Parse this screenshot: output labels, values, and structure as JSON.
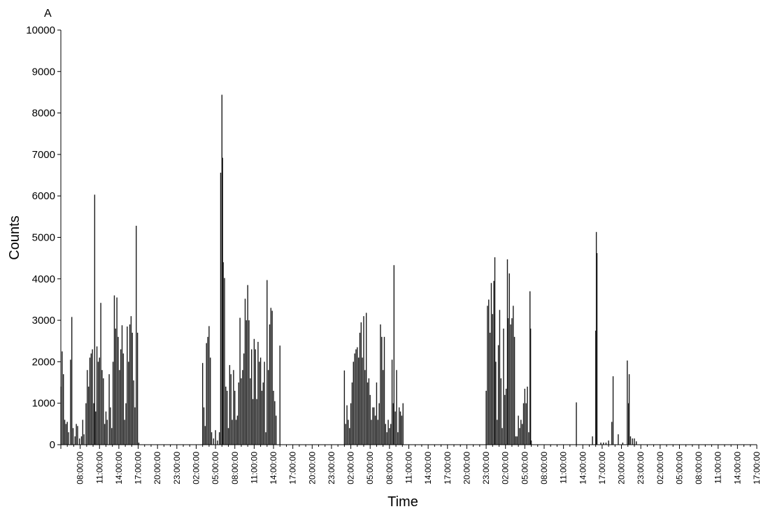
{
  "chart_data": {
    "type": "bar",
    "panel_label": "A",
    "title": "",
    "xlabel": "Time",
    "ylabel": "Counts",
    "ylim": [
      0,
      10000
    ],
    "yticks": [
      0,
      1000,
      2000,
      3000,
      4000,
      5000,
      6000,
      7000,
      8000,
      9000,
      10000
    ],
    "x_start_hour": 5,
    "x_end_hour": 113,
    "x_tick_labels": [
      "08:00:00",
      "11:00:00",
      "14:00:00",
      "17:00:00",
      "20:00:00",
      "23:00:00",
      "02:00:00",
      "05:00:00",
      "08:00:00",
      "11:00:00",
      "14:00:00",
      "17:00:00",
      "20:00:00",
      "23:00:00",
      "02:00:00",
      "05:00:00",
      "08:00:00",
      "11:00:00",
      "14:00:00",
      "17:00:00",
      "20:00:00",
      "23:00:00",
      "02:00:00",
      "05:00:00",
      "08:00:00",
      "11:00:00",
      "14:00:00",
      "17:00:00",
      "20:00:00",
      "23:00:00",
      "02:00:00",
      "05:00:00",
      "08:00:00",
      "11:00:00",
      "14:00:00",
      "17:00:00"
    ],
    "bar_width_hours": 0.1,
    "series": [
      {
        "bar_color": "#1a1a1a",
        "points": [
          [
            5.0,
            1400
          ],
          [
            5.2,
            2250
          ],
          [
            5.4,
            1700
          ],
          [
            5.6,
            600
          ],
          [
            5.8,
            500
          ],
          [
            6.0,
            550
          ],
          [
            6.2,
            300
          ],
          [
            6.5,
            2050
          ],
          [
            6.7,
            3080
          ],
          [
            6.9,
            400
          ],
          [
            7.2,
            200
          ],
          [
            7.4,
            500
          ],
          [
            7.6,
            450
          ],
          [
            7.9,
            150
          ],
          [
            8.2,
            200
          ],
          [
            8.4,
            600
          ],
          [
            8.6,
            250
          ],
          [
            8.9,
            1000
          ],
          [
            9.1,
            1800
          ],
          [
            9.3,
            1400
          ],
          [
            9.5,
            2100
          ],
          [
            9.7,
            2200
          ],
          [
            9.9,
            2300
          ],
          [
            10.1,
            1000
          ],
          [
            10.25,
            6030
          ],
          [
            10.4,
            800
          ],
          [
            10.6,
            2370
          ],
          [
            10.8,
            2000
          ],
          [
            11.0,
            2100
          ],
          [
            11.2,
            3420
          ],
          [
            11.4,
            1800
          ],
          [
            11.6,
            1600
          ],
          [
            11.8,
            500
          ],
          [
            12.0,
            800
          ],
          [
            12.2,
            600
          ],
          [
            12.5,
            1700
          ],
          [
            12.7,
            900
          ],
          [
            12.9,
            400
          ],
          [
            13.1,
            2000
          ],
          [
            13.3,
            3600
          ],
          [
            13.5,
            2800
          ],
          [
            13.7,
            3550
          ],
          [
            13.9,
            2600
          ],
          [
            14.1,
            1800
          ],
          [
            14.3,
            2300
          ],
          [
            14.5,
            2880
          ],
          [
            14.7,
            2200
          ],
          [
            14.9,
            600
          ],
          [
            15.1,
            1000
          ],
          [
            15.3,
            2850
          ],
          [
            15.5,
            2000
          ],
          [
            15.7,
            2900
          ],
          [
            15.9,
            3100
          ],
          [
            16.1,
            2700
          ],
          [
            16.3,
            1550
          ],
          [
            16.5,
            900
          ],
          [
            16.7,
            5280
          ],
          [
            16.9,
            2700
          ],
          [
            17.1,
            50
          ],
          [
            27.0,
            1970
          ],
          [
            27.2,
            900
          ],
          [
            27.4,
            450
          ],
          [
            27.6,
            2450
          ],
          [
            27.8,
            2600
          ],
          [
            28.0,
            2860
          ],
          [
            28.2,
            2100
          ],
          [
            28.4,
            300
          ],
          [
            28.7,
            150
          ],
          [
            29.0,
            350
          ],
          [
            29.3,
            100
          ],
          [
            29.6,
            300
          ],
          [
            29.8,
            6560
          ],
          [
            30.0,
            8440
          ],
          [
            30.1,
            6920
          ],
          [
            30.2,
            4400
          ],
          [
            30.4,
            4020
          ],
          [
            30.6,
            1400
          ],
          [
            30.8,
            1300
          ],
          [
            31.0,
            400
          ],
          [
            31.2,
            1920
          ],
          [
            31.4,
            1700
          ],
          [
            31.6,
            600
          ],
          [
            31.8,
            1800
          ],
          [
            32.0,
            1300
          ],
          [
            32.2,
            600
          ],
          [
            32.4,
            700
          ],
          [
            32.6,
            1500
          ],
          [
            32.8,
            3060
          ],
          [
            33.0,
            1600
          ],
          [
            33.2,
            1800
          ],
          [
            33.4,
            2200
          ],
          [
            33.6,
            3520
          ],
          [
            33.8,
            3000
          ],
          [
            34.0,
            3850
          ],
          [
            34.2,
            3000
          ],
          [
            34.4,
            1600
          ],
          [
            34.6,
            2300
          ],
          [
            34.8,
            1100
          ],
          [
            35.0,
            2550
          ],
          [
            35.2,
            2300
          ],
          [
            35.4,
            1100
          ],
          [
            35.6,
            2480
          ],
          [
            35.8,
            2000
          ],
          [
            36.0,
            2100
          ],
          [
            36.2,
            1300
          ],
          [
            36.4,
            1500
          ],
          [
            36.6,
            2000
          ],
          [
            36.8,
            300
          ],
          [
            37.0,
            3970
          ],
          [
            37.2,
            1800
          ],
          [
            37.4,
            2900
          ],
          [
            37.6,
            3300
          ],
          [
            37.8,
            3230
          ],
          [
            38.0,
            1300
          ],
          [
            38.2,
            1050
          ],
          [
            38.4,
            700
          ],
          [
            39.0,
            2390
          ],
          [
            49.0,
            1790
          ],
          [
            49.2,
            500
          ],
          [
            49.4,
            950
          ],
          [
            49.6,
            600
          ],
          [
            49.8,
            400
          ],
          [
            50.0,
            1000
          ],
          [
            50.2,
            1500
          ],
          [
            50.4,
            2000
          ],
          [
            50.6,
            2200
          ],
          [
            50.8,
            2300
          ],
          [
            51.0,
            2350
          ],
          [
            51.2,
            2100
          ],
          [
            51.4,
            2700
          ],
          [
            51.6,
            2950
          ],
          [
            51.8,
            2100
          ],
          [
            52.0,
            3100
          ],
          [
            52.2,
            1800
          ],
          [
            52.4,
            3180
          ],
          [
            52.6,
            1500
          ],
          [
            52.8,
            1600
          ],
          [
            53.0,
            1200
          ],
          [
            53.2,
            600
          ],
          [
            53.4,
            900
          ],
          [
            53.6,
            900
          ],
          [
            53.8,
            700
          ],
          [
            54.0,
            1500
          ],
          [
            54.2,
            600
          ],
          [
            54.4,
            1000
          ],
          [
            54.6,
            2900
          ],
          [
            54.8,
            2600
          ],
          [
            55.0,
            1800
          ],
          [
            55.2,
            2600
          ],
          [
            55.4,
            500
          ],
          [
            55.6,
            300
          ],
          [
            55.8,
            600
          ],
          [
            56.0,
            400
          ],
          [
            56.2,
            500
          ],
          [
            56.4,
            2050
          ],
          [
            56.6,
            1000
          ],
          [
            56.7,
            4330
          ],
          [
            56.9,
            800
          ],
          [
            57.1,
            1800
          ],
          [
            57.3,
            300
          ],
          [
            57.5,
            900
          ],
          [
            57.7,
            800
          ],
          [
            57.9,
            700
          ],
          [
            58.1,
            1000
          ],
          [
            71.0,
            1300
          ],
          [
            71.2,
            3350
          ],
          [
            71.4,
            3500
          ],
          [
            71.6,
            2700
          ],
          [
            71.8,
            3900
          ],
          [
            72.0,
            3150
          ],
          [
            72.2,
            3950
          ],
          [
            72.35,
            4520
          ],
          [
            72.5,
            2000
          ],
          [
            72.7,
            600
          ],
          [
            72.9,
            2400
          ],
          [
            73.1,
            3250
          ],
          [
            73.3,
            1600
          ],
          [
            73.5,
            400
          ],
          [
            73.7,
            2800
          ],
          [
            73.9,
            1200
          ],
          [
            74.1,
            1350
          ],
          [
            74.3,
            4470
          ],
          [
            74.4,
            3050
          ],
          [
            74.6,
            4130
          ],
          [
            74.8,
            2900
          ],
          [
            75.0,
            3050
          ],
          [
            75.2,
            3350
          ],
          [
            75.4,
            2600
          ],
          [
            75.6,
            200
          ],
          [
            75.8,
            200
          ],
          [
            76.0,
            700
          ],
          [
            76.2,
            400
          ],
          [
            76.4,
            600
          ],
          [
            76.6,
            500
          ],
          [
            76.8,
            1000
          ],
          [
            77.0,
            1350
          ],
          [
            77.2,
            1000
          ],
          [
            77.4,
            1400
          ],
          [
            77.6,
            300
          ],
          [
            77.8,
            3700
          ],
          [
            77.9,
            2800
          ],
          [
            78.0,
            100
          ],
          [
            85.0,
            1020
          ],
          [
            87.5,
            200
          ],
          [
            88.0,
            2750
          ],
          [
            88.1,
            5130
          ],
          [
            88.2,
            4620
          ],
          [
            88.8,
            50
          ],
          [
            89.2,
            50
          ],
          [
            89.6,
            50
          ],
          [
            90.0,
            100
          ],
          [
            90.5,
            550
          ],
          [
            90.7,
            1650
          ],
          [
            91.5,
            250
          ],
          [
            92.2,
            50
          ],
          [
            92.9,
            2030
          ],
          [
            93.1,
            1000
          ],
          [
            93.2,
            1700
          ],
          [
            93.4,
            200
          ],
          [
            93.7,
            150
          ],
          [
            94.0,
            150
          ],
          [
            94.3,
            80
          ]
        ]
      }
    ]
  }
}
